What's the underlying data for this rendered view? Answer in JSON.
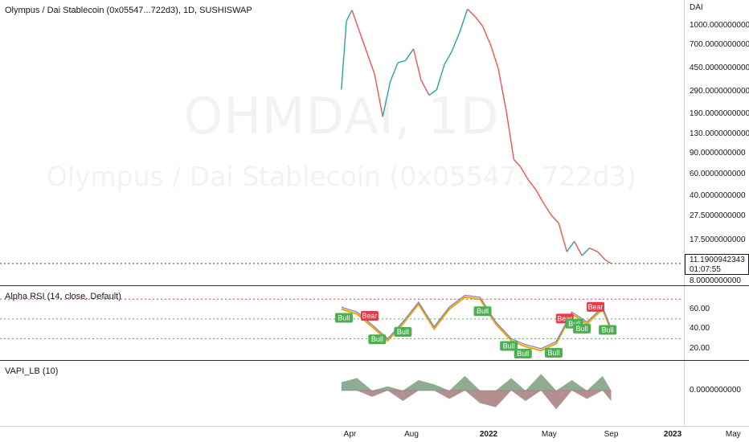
{
  "symbol": {
    "title": "Olympus / Dai Stablecoin (0x05547...722d3), 1D, SUSHISWAP",
    "watermark_ticker": "OHMDAI, 1D",
    "watermark_name": "Olympus / Dai Stablecoin (0x05547...722d3)"
  },
  "colors": {
    "up": "#26a69a",
    "down": "#ef5350",
    "rsi_line_a": "#f7a600",
    "rsi_line_b": "#5b6ee1",
    "bull": "#4caf50",
    "bear": "#f23645",
    "vapi_pos": "#7d9e7d",
    "vapi_neg": "#a87b7b"
  },
  "price_axis": {
    "unit": "DAI",
    "ticks": [
      "1000.0000000000",
      "700.0000000000",
      "450.0000000000",
      "290.0000000000",
      "190.0000000000",
      "130.0000000000",
      "90.0000000000",
      "60.0000000000",
      "40.0000000000",
      "27.5000000000",
      "17.5000000000",
      "8.0000000000"
    ],
    "last_price": "11.1900942343",
    "countdown": "01:07:55"
  },
  "rsi_pane": {
    "legend": "Alpha RSI (14, close, Default)",
    "ticks": [
      "60.00",
      "40.00",
      "20.00"
    ],
    "bull_label": "Bull",
    "bear_label": "Bear"
  },
  "vapi_pane": {
    "legend": "VAPI_LB (10)",
    "ticks": [
      "0.0000000000"
    ]
  },
  "time_axis": {
    "labels": [
      "Apr",
      "Aug",
      "2022",
      "May",
      "Sep",
      "2023",
      "May"
    ]
  },
  "chart_data": [
    {
      "type": "line",
      "title": "Olympus / Dai Stablecoin (0x05547...722d3), 1D, SUSHISWAP",
      "ylabel": "DAI",
      "yscale": "log",
      "ylim": [
        8,
        1450
      ],
      "x": [
        "2021-03-15",
        "2021-03-25",
        "2021-04-05",
        "2021-04-20",
        "2021-05-05",
        "2021-05-20",
        "2021-06-05",
        "2021-06-20",
        "2021-07-05",
        "2021-07-20",
        "2021-08-05",
        "2021-08-20",
        "2021-09-05",
        "2021-09-20",
        "2021-10-05",
        "2021-10-20",
        "2021-11-05",
        "2021-11-20",
        "2021-12-05",
        "2021-12-20",
        "2022-01-05",
        "2022-01-20",
        "2022-02-05",
        "2022-02-20",
        "2022-03-05",
        "2022-03-20",
        "2022-04-05",
        "2022-04-20",
        "2022-05-05",
        "2022-05-20",
        "2022-06-05",
        "2022-06-20",
        "2022-07-05",
        "2022-07-20",
        "2022-08-05",
        "2022-08-20",
        "2022-09-01"
      ],
      "series": [
        {
          "values": [
            300,
            1100,
            1350,
            900,
            600,
            400,
            180,
            350,
            500,
            520,
            650,
            360,
            270,
            300,
            480,
            620,
            900,
            1380,
            1200,
            1000,
            700,
            450,
            200,
            80,
            70,
            55,
            45,
            35,
            28,
            24,
            14,
            17,
            13,
            15,
            14,
            12,
            11.19
          ]
        }
      ]
    },
    {
      "type": "line",
      "title": "Alpha RSI (14, close, Default)",
      "ylim": [
        10,
        80
      ],
      "x": [
        "2021-03-15",
        "2021-04-15",
        "2021-05-15",
        "2021-06-15",
        "2021-07-15",
        "2021-08-15",
        "2021-09-15",
        "2021-10-15",
        "2021-11-15",
        "2021-12-15",
        "2022-01-15",
        "2022-02-15",
        "2022-03-15",
        "2022-04-15",
        "2022-05-15",
        "2022-06-15",
        "2022-07-15",
        "2022-08-15",
        "2022-09-01"
      ],
      "series": [
        {
          "values": [
            60,
            55,
            42,
            28,
            45,
            65,
            40,
            60,
            72,
            70,
            45,
            28,
            22,
            18,
            25,
            55,
            45,
            60,
            38
          ]
        }
      ],
      "hlines": [
        70,
        50,
        30
      ],
      "annotations": [
        {
          "label": "Bull",
          "x": "2021-03-20"
        },
        {
          "label": "Bull",
          "x": "2021-05-25"
        },
        {
          "label": "Bear",
          "x": "2021-05-10"
        },
        {
          "label": "Bull",
          "x": "2021-07-15"
        },
        {
          "label": "Bull",
          "x": "2021-12-20"
        },
        {
          "label": "Bull",
          "x": "2022-02-10"
        },
        {
          "label": "Bull",
          "x": "2022-03-10"
        },
        {
          "label": "Bull",
          "x": "2022-05-10"
        },
        {
          "label": "Bear",
          "x": "2022-06-01"
        },
        {
          "label": "Bull",
          "x": "2022-06-20"
        },
        {
          "label": "Bull",
          "x": "2022-07-05"
        },
        {
          "label": "Bear",
          "x": "2022-08-01"
        },
        {
          "label": "Bull",
          "x": "2022-08-25"
        }
      ]
    },
    {
      "type": "area",
      "title": "VAPI_LB (10)",
      "x": [
        "2021-03-15",
        "2021-04-15",
        "2021-05-15",
        "2021-06-15",
        "2021-07-15",
        "2021-08-15",
        "2021-09-15",
        "2021-10-15",
        "2021-11-15",
        "2021-12-15",
        "2022-01-15",
        "2022-02-15",
        "2022-03-15",
        "2022-04-15",
        "2022-05-15",
        "2022-06-15",
        "2022-07-15",
        "2022-08-15",
        "2022-09-01"
      ],
      "series": [
        {
          "values": [
            0.4,
            0.6,
            -0.3,
            0.2,
            -0.5,
            0.5,
            0.3,
            -0.4,
            0.7,
            -0.6,
            -0.8,
            0.6,
            -0.5,
            0.8,
            -0.9,
            0.5,
            -0.4,
            0.7,
            -0.5
          ]
        }
      ]
    }
  ]
}
